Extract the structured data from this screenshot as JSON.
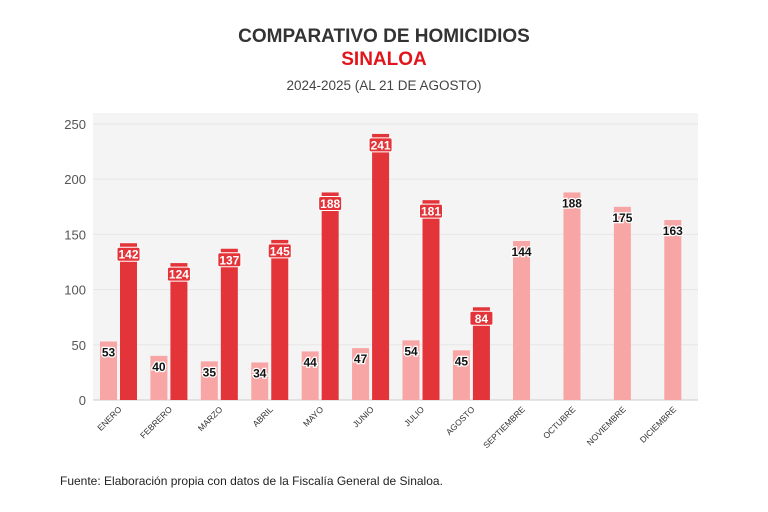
{
  "title": "COMPARATIVO DE HOMICIDIOS",
  "subtitle": "SINALOA",
  "period": "2024-2025 (AL 21 DE AGOSTO)",
  "source": "Fuente: Elaboración propia con datos de la Fiscalía General de Sinaloa.",
  "colors": {
    "2024": "#f8a5a5",
    "2025": "#e3343a",
    "title_accent": "#e0161c",
    "plot_bg": "#f4f4f4"
  },
  "chart_data": {
    "type": "bar",
    "categories": [
      "ENERO",
      "FEBRERO",
      "MARZO",
      "ABRIL",
      "MAYO",
      "JUNIO",
      "JULIO",
      "AGOSTO",
      "SEPTIEMBRE",
      "OCTUBRE",
      "NOVIEMBRE",
      "DICIEMBRE"
    ],
    "series": [
      {
        "values": [
          53,
          40,
          35,
          34,
          44,
          47,
          54,
          45,
          144,
          188,
          175,
          163
        ]
      },
      {
        "values": [
          142,
          124,
          137,
          145,
          188,
          241,
          181,
          84,
          null,
          null,
          null,
          null
        ]
      }
    ],
    "ylim": [
      0,
      250
    ],
    "yticks": [
      0,
      50,
      100,
      150,
      200,
      250
    ],
    "grid": true
  }
}
